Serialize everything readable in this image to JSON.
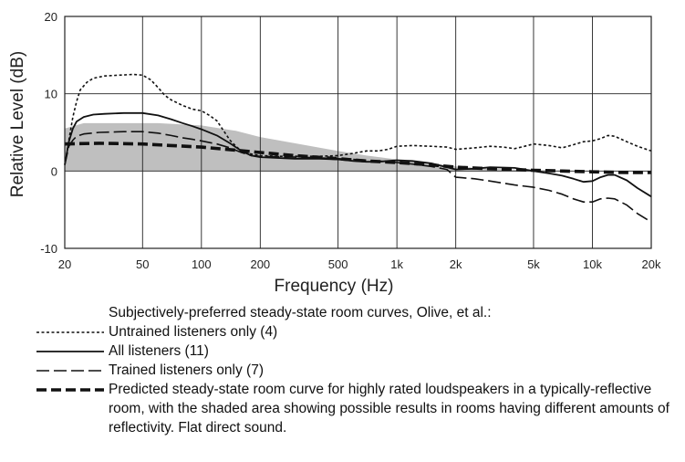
{
  "chart_data": {
    "type": "line",
    "xlabel": "Frequency (Hz)",
    "ylabel": "Relative Level (dB)",
    "x_scale": "log",
    "xlim": [
      20,
      20000
    ],
    "ylim": [
      -10,
      20
    ],
    "x_ticks": [
      {
        "value": 20,
        "label": "20"
      },
      {
        "value": 50,
        "label": "50"
      },
      {
        "value": 100,
        "label": "100"
      },
      {
        "value": 200,
        "label": "200"
      },
      {
        "value": 500,
        "label": "500"
      },
      {
        "value": 1000,
        "label": "1k"
      },
      {
        "value": 2000,
        "label": "2k"
      },
      {
        "value": 5000,
        "label": "5k"
      },
      {
        "value": 10000,
        "label": "10k"
      },
      {
        "value": 20000,
        "label": "20k"
      }
    ],
    "y_ticks": [
      {
        "value": 20,
        "label": "20"
      },
      {
        "value": 10,
        "label": "10"
      },
      {
        "value": 0,
        "label": "0"
      },
      {
        "value": -10,
        "label": "-10"
      }
    ],
    "grid": true,
    "shaded_area": {
      "color": "#bfbfbf",
      "upper": [
        [
          20,
          5.5
        ],
        [
          25,
          6.2
        ],
        [
          60,
          6.2
        ],
        [
          100,
          5.9
        ],
        [
          150,
          5.2
        ],
        [
          200,
          4.4
        ],
        [
          300,
          3.6
        ],
        [
          500,
          2.6
        ],
        [
          700,
          2.0
        ],
        [
          1000,
          1.5
        ],
        [
          1500,
          1.0
        ],
        [
          2000,
          0.6
        ],
        [
          3000,
          0.3
        ],
        [
          5000,
          0.1
        ],
        [
          10000,
          0.0
        ],
        [
          20000,
          0.0
        ]
      ],
      "lower": [
        [
          20,
          0.0
        ],
        [
          20000,
          0.0
        ]
      ]
    },
    "series": [
      {
        "name": "Untrained listeners only (4)",
        "style": "dotted",
        "stroke_width": 1.6,
        "points": [
          [
            20,
            0.8
          ],
          [
            21,
            4
          ],
          [
            22,
            7
          ],
          [
            23,
            9
          ],
          [
            24,
            10.5
          ],
          [
            26,
            11.5
          ],
          [
            28,
            12
          ],
          [
            32,
            12.3
          ],
          [
            38,
            12.4
          ],
          [
            45,
            12.5
          ],
          [
            50,
            12.4
          ],
          [
            55,
            11.8
          ],
          [
            60,
            10.8
          ],
          [
            65,
            9.8
          ],
          [
            70,
            9.2
          ],
          [
            80,
            8.5
          ],
          [
            90,
            8.0
          ],
          [
            100,
            7.8
          ],
          [
            110,
            7.2
          ],
          [
            120,
            6.5
          ],
          [
            130,
            5.2
          ],
          [
            140,
            4.0
          ],
          [
            150,
            3.2
          ],
          [
            160,
            2.6
          ],
          [
            180,
            2.2
          ],
          [
            200,
            2.0
          ],
          [
            250,
            1.9
          ],
          [
            300,
            1.9
          ],
          [
            400,
            1.9
          ],
          [
            500,
            2.0
          ],
          [
            600,
            2.3
          ],
          [
            700,
            2.6
          ],
          [
            800,
            2.6
          ],
          [
            900,
            2.8
          ],
          [
            1000,
            3.2
          ],
          [
            1200,
            3.3
          ],
          [
            1500,
            3.2
          ],
          [
            1800,
            3.1
          ],
          [
            2000,
            2.8
          ],
          [
            2500,
            3.0
          ],
          [
            3000,
            3.2
          ],
          [
            3500,
            3.1
          ],
          [
            4000,
            2.9
          ],
          [
            4500,
            3.2
          ],
          [
            5000,
            3.5
          ],
          [
            6000,
            3.3
          ],
          [
            7000,
            3.0
          ],
          [
            8000,
            3.4
          ],
          [
            9000,
            3.8
          ],
          [
            10000,
            3.9
          ],
          [
            11000,
            4.2
          ],
          [
            12000,
            4.6
          ],
          [
            13000,
            4.5
          ],
          [
            15000,
            3.8
          ],
          [
            17000,
            3.2
          ],
          [
            20000,
            2.6
          ]
        ]
      },
      {
        "name": "All listeners (11)",
        "style": "solid",
        "stroke_width": 1.8,
        "points": [
          [
            20,
            0.8
          ],
          [
            21,
            3.8
          ],
          [
            22,
            5.5
          ],
          [
            23,
            6.4
          ],
          [
            25,
            7.0
          ],
          [
            28,
            7.3
          ],
          [
            32,
            7.4
          ],
          [
            40,
            7.5
          ],
          [
            50,
            7.5
          ],
          [
            60,
            7.2
          ],
          [
            70,
            6.7
          ],
          [
            80,
            6.2
          ],
          [
            90,
            5.8
          ],
          [
            100,
            5.4
          ],
          [
            120,
            4.6
          ],
          [
            140,
            3.6
          ],
          [
            160,
            2.6
          ],
          [
            180,
            2.0
          ],
          [
            200,
            1.8
          ],
          [
            300,
            1.6
          ],
          [
            400,
            1.6
          ],
          [
            500,
            1.5
          ],
          [
            600,
            1.3
          ],
          [
            700,
            1.2
          ],
          [
            800,
            1.2
          ],
          [
            900,
            1.3
          ],
          [
            1000,
            1.4
          ],
          [
            1200,
            1.3
          ],
          [
            1500,
            1.0
          ],
          [
            2000,
            0.2
          ],
          [
            2500,
            0.3
          ],
          [
            3000,
            0.5
          ],
          [
            4000,
            0.4
          ],
          [
            5000,
            0.0
          ],
          [
            6000,
            -0.3
          ],
          [
            7000,
            -0.6
          ],
          [
            8000,
            -1.0
          ],
          [
            9000,
            -1.4
          ],
          [
            10000,
            -1.3
          ],
          [
            11000,
            -0.8
          ],
          [
            12000,
            -0.5
          ],
          [
            13000,
            -0.5
          ],
          [
            15000,
            -1.2
          ],
          [
            17000,
            -2.2
          ],
          [
            20000,
            -3.3
          ]
        ]
      },
      {
        "name": "Trained listeners only (7)",
        "style": "long-dash",
        "stroke_width": 1.6,
        "points": [
          [
            20,
            0.8
          ],
          [
            21,
            3.2
          ],
          [
            22,
            4.0
          ],
          [
            23,
            4.5
          ],
          [
            25,
            4.8
          ],
          [
            30,
            5.0
          ],
          [
            40,
            5.1
          ],
          [
            50,
            5.1
          ],
          [
            60,
            4.9
          ],
          [
            70,
            4.6
          ],
          [
            80,
            4.3
          ],
          [
            90,
            4.1
          ],
          [
            100,
            3.9
          ],
          [
            120,
            3.5
          ],
          [
            140,
            3.0
          ],
          [
            160,
            2.4
          ],
          [
            180,
            2.0
          ],
          [
            200,
            1.9
          ],
          [
            300,
            1.8
          ],
          [
            400,
            1.7
          ],
          [
            500,
            1.6
          ],
          [
            600,
            1.5
          ],
          [
            700,
            1.4
          ],
          [
            800,
            1.3
          ],
          [
            900,
            1.2
          ],
          [
            1000,
            1.1
          ],
          [
            1200,
            0.9
          ],
          [
            1500,
            0.6
          ],
          [
            1800,
            0.2
          ],
          [
            2000,
            -0.8
          ],
          [
            2500,
            -1.0
          ],
          [
            3000,
            -1.3
          ],
          [
            4000,
            -1.8
          ],
          [
            5000,
            -2.1
          ],
          [
            6000,
            -2.5
          ],
          [
            7000,
            -3.0
          ],
          [
            8000,
            -3.6
          ],
          [
            9000,
            -4.0
          ],
          [
            10000,
            -4.0
          ],
          [
            11000,
            -3.6
          ],
          [
            12000,
            -3.5
          ],
          [
            13000,
            -3.6
          ],
          [
            15000,
            -4.4
          ],
          [
            17000,
            -5.5
          ],
          [
            20000,
            -6.6
          ]
        ]
      },
      {
        "name": "Predicted steady-state room curve for highly rated loudspeakers in a typically-reflective room, with the shaded area showing possible results in rooms having different amounts of reflectivity.  Flat direct sound.",
        "style": "heavy-dash",
        "stroke_width": 3.6,
        "points": [
          [
            20,
            3.5
          ],
          [
            30,
            3.6
          ],
          [
            50,
            3.5
          ],
          [
            70,
            3.3
          ],
          [
            100,
            3.1
          ],
          [
            150,
            2.7
          ],
          [
            200,
            2.4
          ],
          [
            300,
            2.0
          ],
          [
            500,
            1.6
          ],
          [
            700,
            1.3
          ],
          [
            1000,
            1.1
          ],
          [
            1500,
            0.8
          ],
          [
            2000,
            0.5
          ],
          [
            3000,
            0.3
          ],
          [
            5000,
            0.1
          ],
          [
            7000,
            0.0
          ],
          [
            10000,
            -0.1
          ],
          [
            15000,
            -0.2
          ],
          [
            20000,
            -0.2
          ]
        ]
      }
    ],
    "legend_heading": "Subjectively-preferred steady-state room curves, Olive, et al.:"
  }
}
